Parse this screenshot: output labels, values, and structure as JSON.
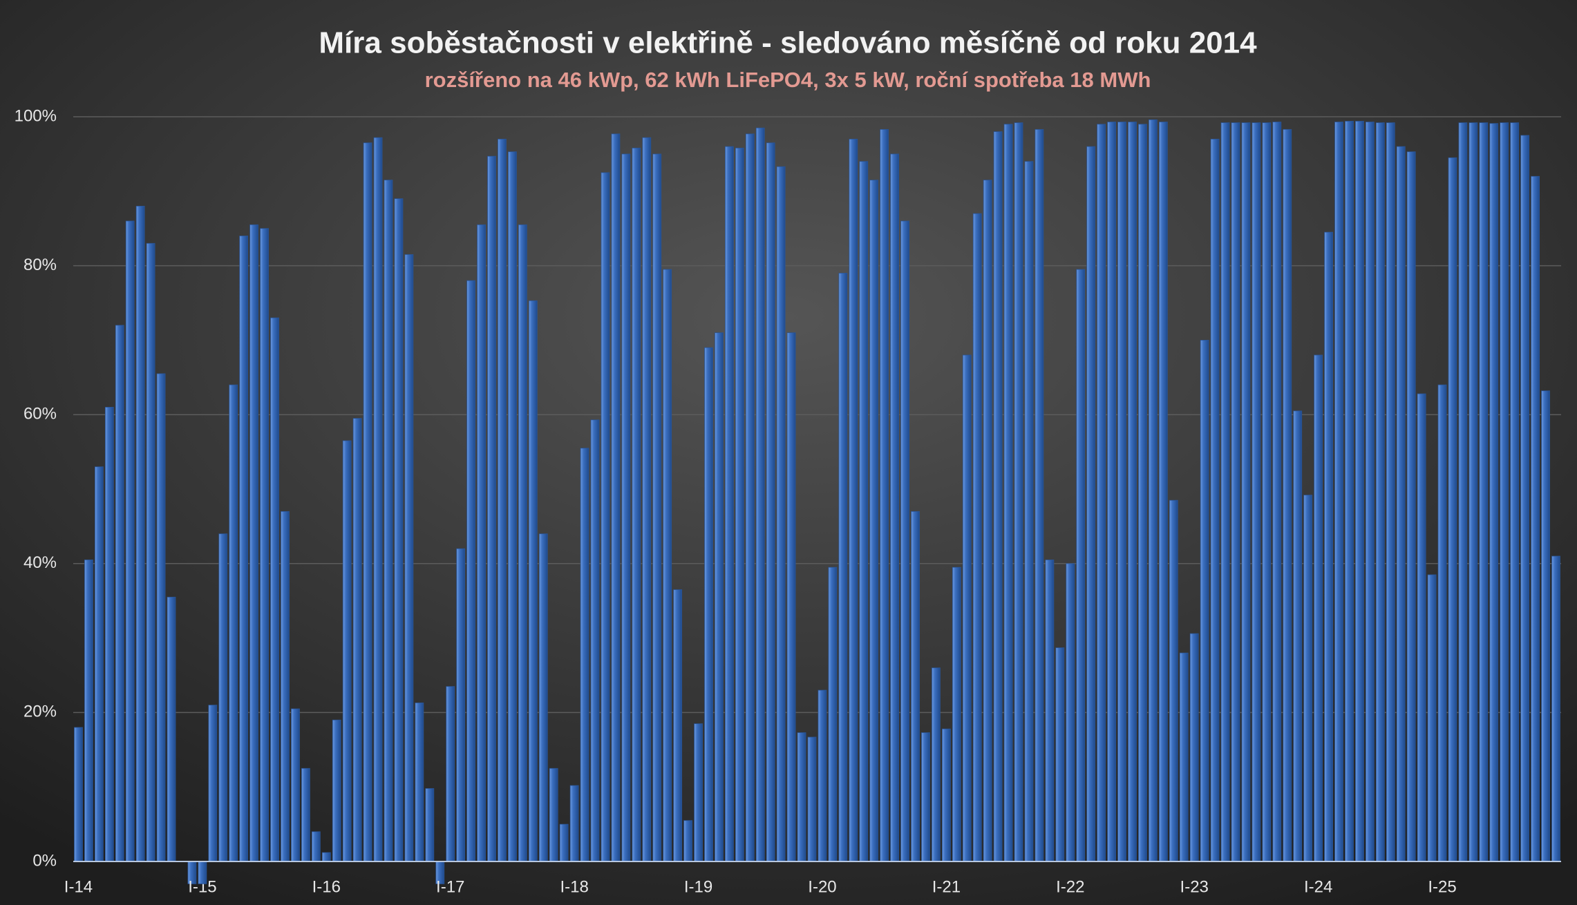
{
  "chart_data": {
    "type": "bar",
    "title": "Míra soběstačnosti v elektřině - sledováno měsíčně od roku 2014",
    "subtitle": "rozšířeno na 46 kWp, 62 kWh LiFePO4, 3x 5 kW, roční spotřeba 18 MWh",
    "categories": [
      "I-14",
      null,
      null,
      null,
      null,
      null,
      null,
      null,
      null,
      null,
      null,
      null,
      "I-15",
      null,
      null,
      null,
      null,
      null,
      null,
      null,
      null,
      null,
      null,
      null,
      "I-16",
      null,
      null,
      null,
      null,
      null,
      null,
      null,
      null,
      null,
      null,
      null,
      "I-17",
      null,
      null,
      null,
      null,
      null,
      null,
      null,
      null,
      null,
      null,
      null,
      "I-18",
      null,
      null,
      null,
      null,
      null,
      null,
      null,
      null,
      null,
      null,
      null,
      "I-19",
      null,
      null,
      null,
      null,
      null,
      null,
      null,
      null,
      null,
      null,
      null,
      "I-20",
      null,
      null,
      null,
      null,
      null,
      null,
      null,
      null,
      null,
      null,
      null,
      "I-21",
      null,
      null,
      null,
      null,
      null,
      null,
      null,
      null,
      null,
      null,
      null,
      "I-22",
      null,
      null,
      null,
      null,
      null,
      null,
      null,
      null,
      null,
      null,
      null,
      "I-23",
      null,
      null,
      null,
      null,
      null,
      null,
      null,
      null,
      null,
      null,
      null,
      "I-24",
      null,
      null,
      null,
      null,
      null,
      null,
      null,
      null,
      null,
      null,
      null,
      "I-25",
      null,
      null,
      null,
      null,
      null,
      null,
      null,
      null,
      null,
      null,
      null
    ],
    "values": [
      18,
      40.5,
      53,
      61,
      72,
      86,
      88,
      83,
      65.5,
      35.5,
      0,
      -3,
      -3,
      21,
      44,
      64,
      84,
      85.5,
      85,
      73,
      47,
      20.5,
      12.5,
      4,
      1.2,
      19,
      56.5,
      59.5,
      96.5,
      97.2,
      91.5,
      89,
      81.5,
      21.3,
      9.8,
      -3,
      23.5,
      42,
      78,
      85.5,
      94.7,
      97,
      95.3,
      85.5,
      75.3,
      44,
      12.5,
      5,
      10.2,
      55.5,
      59.3,
      92.5,
      97.7,
      95,
      95.8,
      97.2,
      95,
      79.5,
      36.5,
      5.5,
      18.5,
      69,
      71,
      96,
      95.8,
      97.7,
      98.5,
      96.5,
      93.3,
      71,
      17.3,
      16.7,
      23,
      39.5,
      79,
      97,
      94,
      91.5,
      98.3,
      95,
      86,
      47,
      17.3,
      26,
      17.8,
      39.5,
      68,
      87,
      91.5,
      98,
      99,
      99.2,
      94,
      98.3,
      40.5,
      28.7,
      40,
      79.5,
      96,
      99,
      99.3,
      99.3,
      99.3,
      99,
      99.6,
      99.3,
      48.5,
      28,
      30.6,
      70,
      97,
      99.2,
      99.2,
      99.2,
      99.2,
      99.2,
      99.3,
      98.3,
      60.5,
      49.2,
      68,
      84.5,
      99.3,
      99.4,
      99.4,
      99.3,
      99.2,
      99.2,
      96,
      95.3,
      62.8,
      38.5,
      64,
      94.5,
      99.2,
      99.2,
      99.2,
      99.1,
      99.2,
      99.2,
      97.5,
      92,
      63.2,
      41
    ],
    "color": "#3b6fc0",
    "ylim": [
      0,
      100
    ],
    "yticks": [
      {
        "value": 0,
        "label": "0%"
      },
      {
        "value": 20,
        "label": "20%"
      },
      {
        "value": 40,
        "label": "40%"
      },
      {
        "value": 60,
        "label": "60%"
      },
      {
        "value": 80,
        "label": "80%"
      },
      {
        "value": 100,
        "label": "100%"
      }
    ],
    "grid": true
  }
}
